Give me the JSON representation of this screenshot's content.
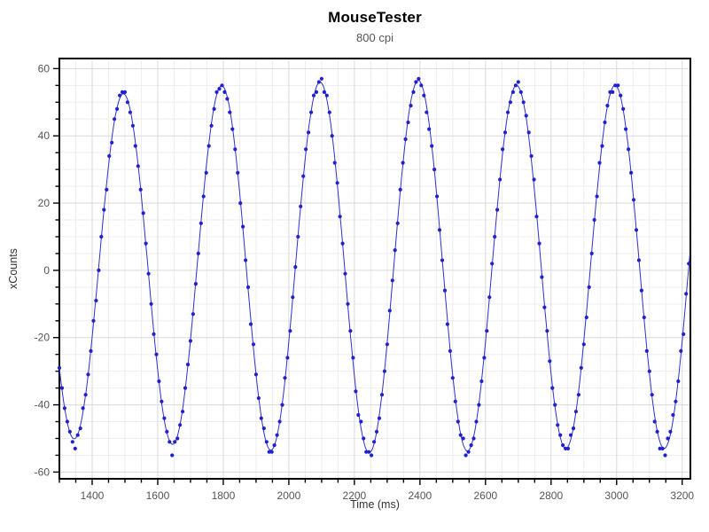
{
  "chart_data": {
    "type": "scatter",
    "title": "MouseTester",
    "subtitle": "800 cpi",
    "xlabel": "Time (ms)",
    "ylabel": "xCounts",
    "x_range": [
      1300,
      3225
    ],
    "y_range": [
      -62,
      63
    ],
    "x_major_ticks": [
      1400,
      1600,
      1800,
      2000,
      2200,
      2400,
      2600,
      2800,
      3000,
      3200
    ],
    "x_minor_step": 50,
    "y_major_ticks": [
      -60,
      -40,
      -20,
      0,
      20,
      40,
      60
    ],
    "y_minor_step": 5,
    "grid": {
      "on": true,
      "minor_color": "#ededed",
      "major_color": "#d9d9d9"
    },
    "axis_color": "#000000",
    "tick_label_color": "#555555",
    "plot_background": "#ffffff",
    "legend": "none",
    "series": [
      {
        "name": "xCounts",
        "color": "#2020cf",
        "line_color": "#3030cf",
        "marker": "circle",
        "marker_radius": 2.1,
        "sample_interval_ms": 8,
        "waveform": {
          "shape": "sine",
          "period_ms": 300,
          "peak_time_ms": 1495,
          "offset_counts": 1,
          "amplitude_envelope": [
            [
              1300,
              51
            ],
            [
              1495,
              51.5
            ],
            [
              1795,
              54
            ],
            [
              2095,
              55
            ],
            [
              2395,
              55.5
            ],
            [
              2695,
              54
            ],
            [
              2995,
              54
            ],
            [
              3225,
              54
            ]
          ],
          "noise_counts": 2,
          "noise_seed": 13,
          "values_integer": true
        },
        "peaks": [
          [
            1495,
            52.5
          ],
          [
            1795,
            55
          ],
          [
            2095,
            56
          ],
          [
            2395,
            56.5
          ],
          [
            2695,
            55
          ],
          [
            2995,
            55
          ]
        ],
        "troughs": [
          [
            1345,
            -50
          ],
          [
            1645,
            -49
          ],
          [
            1945,
            -54
          ],
          [
            2245,
            -52
          ],
          [
            2545,
            -53
          ],
          [
            2845,
            -52
          ],
          [
            3145,
            -55
          ]
        ],
        "outliers": [
          [
            1352,
            -53
          ],
          [
            1648,
            -55
          ],
          [
            2256,
            -55
          ],
          [
            3136,
            -53
          ],
          [
            3148,
            -55
          ]
        ],
        "edge_values": {
          "start": [
            1300,
            -31
          ],
          "end": [
            3224,
            3
          ]
        }
      }
    ]
  }
}
